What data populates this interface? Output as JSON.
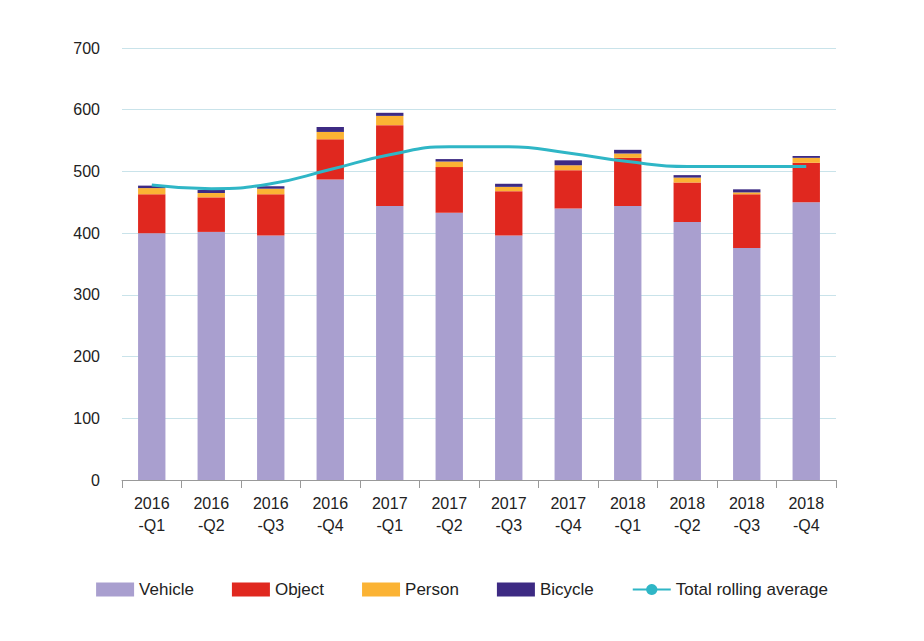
{
  "chart_data": {
    "type": "bar",
    "stacked": true,
    "grid": true,
    "legend": "bottom",
    "categories": [
      "2016\n-Q1",
      "2016\n-Q2",
      "2016\n-Q3",
      "2016\n-Q4",
      "2017\n-Q1",
      "2017\n-Q2",
      "2017\n-Q3",
      "2017\n-Q4",
      "2018\n-Q1",
      "2018\n-Q2",
      "2018\n-Q3",
      "2018\n-Q4"
    ],
    "ylim": [
      0,
      700
    ],
    "yticks": [
      0,
      100,
      200,
      300,
      400,
      500,
      600,
      700
    ],
    "series": [
      {
        "name": "Vehicle",
        "color": "#a99fcf",
        "values": [
          400,
          402,
          396,
          487,
          444,
          433,
          396,
          440,
          444,
          418,
          376,
          450
        ]
      },
      {
        "name": "Object",
        "color": "#e0281f",
        "values": [
          63,
          56,
          67,
          65,
          131,
          74,
          72,
          62,
          78,
          64,
          87,
          64
        ]
      },
      {
        "name": "Person",
        "color": "#fbb334",
        "values": [
          10,
          7,
          9,
          12,
          15,
          9,
          7,
          8,
          7,
          8,
          3,
          8
        ]
      },
      {
        "name": "Bicycle",
        "color": "#3d2a83",
        "values": [
          4,
          5,
          4,
          8,
          5,
          4,
          5,
          8,
          6,
          4,
          5,
          3
        ]
      },
      {
        "name": "Total rolling average",
        "type": "line",
        "color": "#2fb6c6",
        "values": [
          478,
          472,
          480,
          503,
          527,
          540,
          540,
          530,
          516,
          508,
          508,
          508
        ]
      }
    ]
  }
}
